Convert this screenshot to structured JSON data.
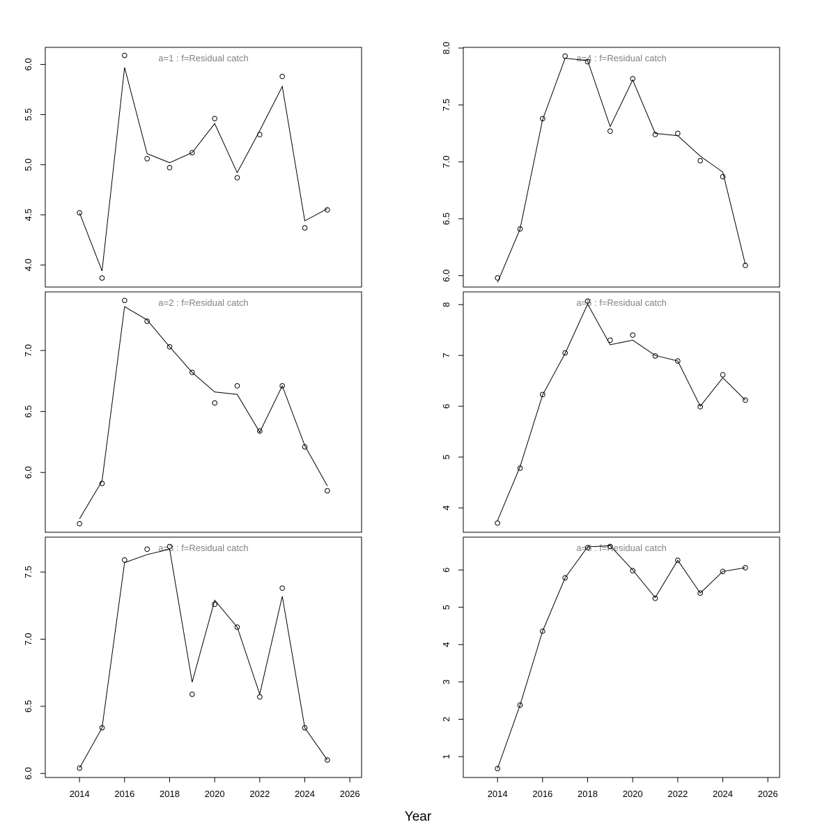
{
  "chart_data": [
    {
      "type": "line",
      "title": "a=1  :  f=Residual catch",
      "x": [
        2014,
        2015,
        2016,
        2017,
        2018,
        2019,
        2020,
        2021,
        2022,
        2023,
        2024,
        2025
      ],
      "series": [
        {
          "style": "points",
          "color": "#000000",
          "values": [
            4.52,
            3.87,
            6.09,
            5.06,
            4.97,
            5.12,
            5.46,
            4.87,
            5.3,
            5.88,
            4.37,
            4.55
          ]
        },
        {
          "style": "line",
          "color": "#000000",
          "values": [
            4.52,
            3.94,
            5.97,
            5.11,
            5.02,
            5.12,
            5.41,
            4.92,
            5.34,
            5.78,
            4.44,
            4.56
          ]
        }
      ],
      "xlim": [
        2012.48,
        2026.52
      ],
      "ylim": [
        3.78,
        6.17
      ],
      "yticks": [
        {
          "value": 4,
          "label": "4.0"
        },
        4.5,
        {
          "value": 5,
          "label": "5.0"
        },
        5.5,
        {
          "value": 6,
          "label": "6.0"
        }
      ]
    },
    {
      "type": "line",
      "title": "a=2  :  f=Residual catch",
      "x": [
        2014,
        2015,
        2016,
        2017,
        2018,
        2019,
        2020,
        2021,
        2022,
        2023,
        2024,
        2025
      ],
      "series": [
        {
          "style": "points",
          "color": "#000000",
          "values": [
            5.58,
            5.91,
            7.41,
            7.24,
            7.03,
            6.82,
            6.57,
            6.71,
            6.34,
            6.71,
            6.21,
            5.85
          ]
        },
        {
          "style": "line",
          "color": "#000000",
          "values": [
            5.62,
            5.93,
            7.36,
            7.25,
            7.03,
            6.82,
            6.66,
            6.64,
            6.33,
            6.71,
            6.22,
            5.89
          ]
        }
      ],
      "xlim": [
        2012.48,
        2026.52
      ],
      "ylim": [
        5.51,
        7.48
      ],
      "yticks": [
        {
          "value": 6,
          "label": "6.0"
        },
        6.5,
        {
          "value": 7,
          "label": "7.0"
        }
      ]
    },
    {
      "type": "line",
      "title": "a=3  :  f=Residual catch",
      "x": [
        2014,
        2015,
        2016,
        2017,
        2018,
        2019,
        2020,
        2021,
        2022,
        2023,
        2024,
        2025
      ],
      "series": [
        {
          "style": "points",
          "color": "#000000",
          "values": [
            6.04,
            6.34,
            7.59,
            7.67,
            7.69,
            6.59,
            7.26,
            7.09,
            6.57,
            7.38,
            6.34,
            6.1
          ]
        },
        {
          "style": "line",
          "color": "#000000",
          "values": [
            6.04,
            6.34,
            7.57,
            7.63,
            7.67,
            6.68,
            7.29,
            7.09,
            6.59,
            7.32,
            6.34,
            6.1
          ]
        }
      ],
      "xlim": [
        2012.48,
        2026.52
      ],
      "ylim": [
        5.97,
        7.76
      ],
      "yticks": [
        {
          "value": 6,
          "label": "6.0"
        },
        6.5,
        {
          "value": 7,
          "label": "7.0"
        },
        7.5
      ],
      "xticks": [
        2014,
        2016,
        2018,
        2020,
        2022,
        2024,
        2026
      ]
    },
    {
      "type": "line",
      "title": "a=4  :  f=Residual catch",
      "x": [
        2014,
        2015,
        2016,
        2017,
        2018,
        2019,
        2020,
        2021,
        2022,
        2023,
        2024,
        2025
      ],
      "series": [
        {
          "style": "points",
          "color": "#000000",
          "values": [
            5.98,
            6.41,
            7.38,
            7.93,
            7.88,
            7.27,
            7.73,
            7.24,
            7.25,
            7.01,
            6.87,
            6.09
          ]
        },
        {
          "style": "line",
          "color": "#000000",
          "values": [
            5.94,
            6.41,
            7.37,
            7.91,
            7.89,
            7.31,
            7.72,
            7.25,
            7.23,
            7.05,
            6.91,
            6.1
          ]
        }
      ],
      "xlim": [
        2012.48,
        2026.52
      ],
      "ylim": [
        5.9,
        8.006
      ],
      "yticks": [
        {
          "value": 6,
          "label": "6.0"
        },
        6.5,
        {
          "value": 7,
          "label": "7.0"
        },
        7.5,
        {
          "value": 8,
          "label": "8.0"
        }
      ]
    },
    {
      "type": "line",
      "title": "a=5  :  f=Residual catch",
      "x": [
        2014,
        2015,
        2016,
        2017,
        2018,
        2019,
        2020,
        2021,
        2022,
        2023,
        2024,
        2025
      ],
      "series": [
        {
          "style": "points",
          "color": "#000000",
          "values": [
            3.7,
            4.78,
            6.23,
            7.05,
            8.07,
            7.3,
            7.4,
            6.99,
            6.89,
            5.99,
            6.62,
            6.12
          ]
        },
        {
          "style": "line",
          "color": "#000000",
          "values": [
            3.75,
            4.81,
            6.22,
            7.04,
            8.01,
            7.21,
            7.3,
            7.0,
            6.89,
            6.0,
            6.56,
            6.12
          ]
        }
      ],
      "xlim": [
        2012.48,
        2026.52
      ],
      "ylim": [
        3.52,
        8.25
      ],
      "yticks": [
        4,
        5,
        6,
        7,
        8
      ]
    },
    {
      "type": "line",
      "title": "a=6  :  f=Residual catch",
      "x": [
        2014,
        2015,
        2016,
        2017,
        2018,
        2019,
        2020,
        2021,
        2022,
        2023,
        2024,
        2025
      ],
      "series": [
        {
          "style": "points",
          "color": "#000000",
          "values": [
            0.68,
            2.38,
            4.36,
            5.79,
            6.6,
            6.63,
            5.98,
            5.24,
            6.26,
            5.38,
            5.96,
            6.06
          ]
        },
        {
          "style": "line",
          "color": "#000000",
          "values": [
            0.68,
            2.38,
            4.36,
            5.79,
            6.62,
            6.65,
            6.0,
            5.26,
            6.26,
            5.38,
            5.96,
            6.06
          ]
        }
      ],
      "xlim": [
        2012.48,
        2026.52
      ],
      "ylim": [
        0.44,
        6.88
      ],
      "yticks": [
        1,
        2,
        3,
        4,
        5,
        6
      ],
      "xticks": [
        2014,
        2016,
        2018,
        2020,
        2022,
        2024,
        2026
      ]
    }
  ],
  "xlabel": "Year"
}
